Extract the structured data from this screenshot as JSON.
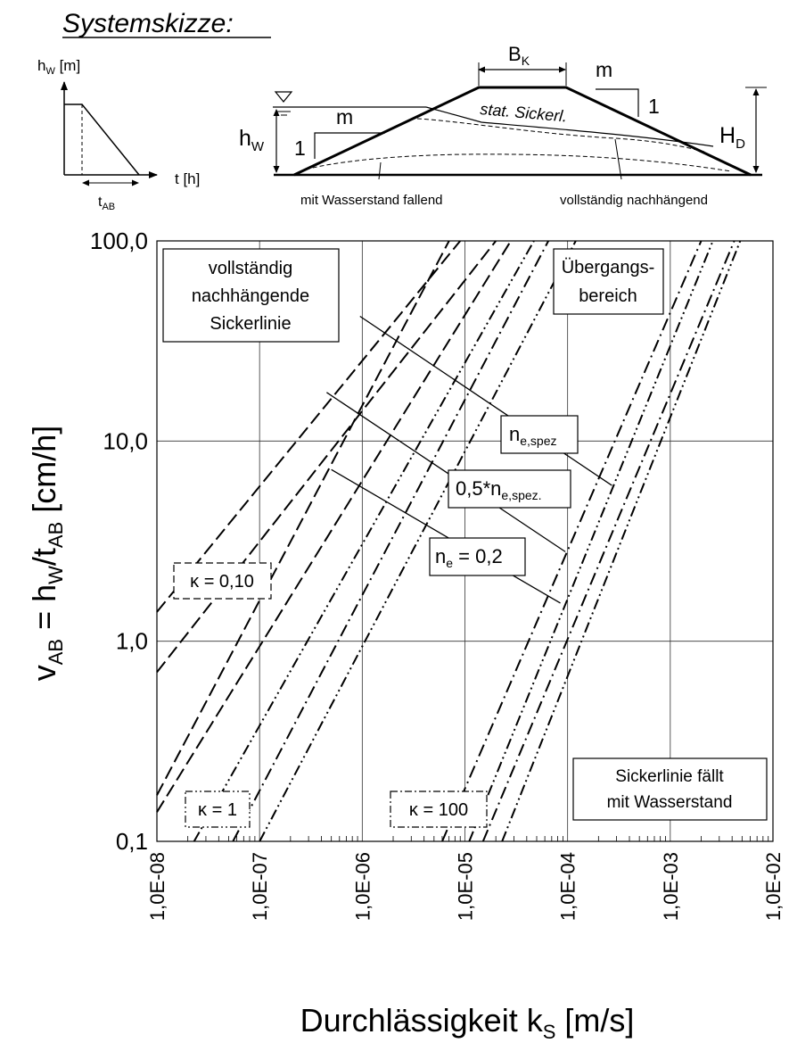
{
  "sketch": {
    "title": "Systemskizze:",
    "hw_axis": {
      "main": "h",
      "sub": "W",
      "unit": " [m]"
    },
    "t_axis": "t  [h]",
    "t_ab": {
      "main": "t",
      "sub": "AB"
    },
    "bk": {
      "main": "B",
      "sub": "K"
    },
    "m": "m",
    "one": "1",
    "hw": {
      "main": "h",
      "sub": "W"
    },
    "hd": {
      "main": "H",
      "sub": "D"
    },
    "stat": "stat. Sickerl.",
    "fallend": "mit Wasserstand fallend",
    "nachhaengend": "vollständig nachhängend"
  },
  "labels": {
    "voll": [
      "vollständig",
      "nachhängende",
      "Sickerlinie"
    ],
    "uebergang": [
      "Übergangs-",
      "bereich"
    ],
    "sickerfaellt": [
      "Sickerlinie fällt",
      "mit Wasserstand"
    ],
    "nespez": {
      "main": "n",
      "sub": "e,spez"
    },
    "halfnespez": {
      "pre": "0,5*n",
      "sub": "e,spez."
    },
    "ne02": {
      "main": "n",
      "sub": "e",
      "post": " = 0,2"
    },
    "k010": "κ = 0,10",
    "k1": "κ = 1",
    "k100": "κ = 100"
  },
  "chart_data": {
    "type": "line",
    "x_scale": "log",
    "y_scale": "log",
    "xlim": [
      1e-08,
      0.01
    ],
    "ylim": [
      0.1,
      100
    ],
    "x_ticks": [
      "1,0E-08",
      "1,0E-07",
      "1,0E-06",
      "1,0E-05",
      "1,0E-04",
      "1,0E-03",
      "1,0E-02"
    ],
    "y_ticks": [
      "0,1",
      "1,0",
      "10,0",
      "100,0"
    ],
    "xlabel": {
      "main": "Durchlässigkeit k",
      "sub": "S",
      "post": " [m/s]"
    },
    "ylabel": {
      "v": "v",
      "vsub": "AB",
      "mid": " = h",
      "hsub": "W",
      "slash": "/t",
      "tsub": "AB",
      "unit": " [cm/h]"
    },
    "grid": true,
    "series": [
      {
        "style": "dash",
        "x": [
          1e-08,
          9e-06
        ],
        "y": [
          1.4,
          100
        ]
      },
      {
        "style": "dash",
        "x": [
          1e-08,
          2e-05
        ],
        "y": [
          0.7,
          100
        ]
      },
      {
        "style": "dash",
        "x": [
          1e-08,
          7e-06
        ],
        "y": [
          0.17,
          100
        ]
      },
      {
        "style": "dash",
        "x": [
          1e-08,
          2.8e-05
        ],
        "y": [
          0.14,
          100
        ]
      },
      {
        "style": "dashdotdot",
        "x": [
          2.3e-08,
          4.7e-05
        ],
        "y": [
          0.1,
          100
        ]
      },
      {
        "style": "dashdot",
        "x": [
          5.5e-08,
          6.5e-05
        ],
        "y": [
          0.1,
          100
        ]
      },
      {
        "style": "dashdotdot",
        "x": [
          1e-07,
          0.00012
        ],
        "y": [
          0.1,
          100
        ]
      },
      {
        "style": "dashdot",
        "x": [
          6e-06,
          0.002
        ],
        "y": [
          0.1,
          100
        ]
      },
      {
        "style": "dashdotdot",
        "x": [
          1.1e-05,
          0.0026
        ],
        "y": [
          0.1,
          100
        ]
      },
      {
        "style": "dashdot",
        "x": [
          1.5e-05,
          0.0042
        ],
        "y": [
          0.1,
          100
        ]
      },
      {
        "style": "dashdotdot",
        "x": [
          2.3e-05,
          0.0048
        ],
        "y": [
          0.1,
          100
        ]
      }
    ],
    "annotation_lines": [
      {
        "x": [
          9.5e-07,
          0.00027
        ],
        "y": [
          42,
          6.0
        ]
      },
      {
        "x": [
          4.5e-07,
          9.5e-05
        ],
        "y": [
          17.5,
          2.8
        ]
      },
      {
        "x": [
          5e-07,
          8.5e-05
        ],
        "y": [
          7.2,
          1.55
        ]
      }
    ]
  }
}
